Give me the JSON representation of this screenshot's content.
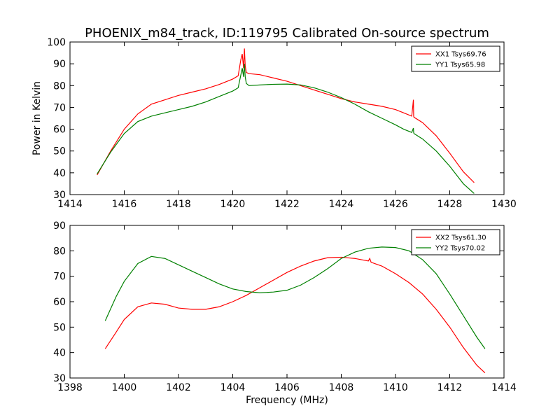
{
  "title": "PHOENIX_m84_track, ID:119795 Calibrated On-source spectrum",
  "chart_data": [
    {
      "type": "line",
      "ylabel": "Power in Kelvin",
      "xlabel": "",
      "xlim": [
        1414,
        1430
      ],
      "ylim": [
        30,
        100
      ],
      "xticks": [
        "1414",
        "1416",
        "1418",
        "1420",
        "1422",
        "1424",
        "1426",
        "1428",
        "1430"
      ],
      "yticks": [
        "30",
        "40",
        "50",
        "60",
        "70",
        "80",
        "90",
        "100"
      ],
      "legend_position": "top-right",
      "series": [
        {
          "name": "XX1 Tsys69.76",
          "color": "#ff0000",
          "x": [
            1415.0,
            1415.5,
            1416.0,
            1416.5,
            1417.0,
            1417.5,
            1418.0,
            1418.5,
            1419.0,
            1419.5,
            1420.0,
            1420.2,
            1420.3,
            1420.35,
            1420.4,
            1420.43,
            1420.46,
            1420.5,
            1420.6,
            1421.0,
            1421.5,
            1422.0,
            1422.5,
            1423.0,
            1423.5,
            1424.0,
            1424.5,
            1425.0,
            1425.5,
            1426.0,
            1426.3,
            1426.6,
            1426.66,
            1426.67,
            1426.68,
            1427.0,
            1427.5,
            1428.0,
            1428.5,
            1428.9
          ],
          "values": [
            39,
            50,
            60,
            67,
            71.5,
            73.5,
            75.5,
            77,
            78.5,
            80.5,
            83,
            84.5,
            92,
            94.5,
            88,
            97,
            89,
            86,
            85.5,
            85,
            83.5,
            82,
            80,
            78,
            76,
            74,
            72.5,
            71.5,
            70.5,
            69,
            67.5,
            66,
            73.5,
            66,
            65.5,
            63,
            57,
            49,
            40.5,
            35.5
          ]
        },
        {
          "name": "YY1 Tsys65.98",
          "color": "#008000",
          "x": [
            1415.0,
            1415.5,
            1416.0,
            1416.5,
            1417.0,
            1417.5,
            1418.0,
            1418.5,
            1419.0,
            1419.5,
            1420.0,
            1420.2,
            1420.3,
            1420.35,
            1420.4,
            1420.43,
            1420.46,
            1420.5,
            1420.6,
            1421.0,
            1421.5,
            1422.0,
            1422.5,
            1423.0,
            1423.5,
            1424.0,
            1424.5,
            1425.0,
            1425.5,
            1426.0,
            1426.3,
            1426.6,
            1426.66,
            1426.67,
            1426.68,
            1427.0,
            1427.5,
            1428.0,
            1428.5,
            1428.9
          ],
          "values": [
            39.5,
            49.5,
            58,
            63.5,
            66,
            67.5,
            69,
            70.5,
            72.5,
            75,
            77.5,
            79,
            85,
            88,
            84,
            90,
            84,
            81,
            80,
            80.3,
            80.6,
            80.7,
            80.3,
            79,
            77,
            74.5,
            71.5,
            68,
            65,
            62,
            60,
            58.5,
            60.5,
            58.5,
            58,
            55.5,
            50,
            43,
            35,
            30.5
          ]
        }
      ]
    },
    {
      "type": "line",
      "xlabel": "Frequency (MHz)",
      "ylabel": "",
      "xlim": [
        1398,
        1414
      ],
      "ylim": [
        30,
        90
      ],
      "xticks": [
        "1398",
        "1400",
        "1402",
        "1404",
        "1406",
        "1408",
        "1410",
        "1412",
        "1414"
      ],
      "yticks": [
        "30",
        "40",
        "50",
        "60",
        "70",
        "80",
        "90"
      ],
      "legend_position": "top-right",
      "series": [
        {
          "name": "XX2 Tsys61.30",
          "color": "#ff0000",
          "x": [
            1399.3,
            1399.7,
            1400.0,
            1400.5,
            1401.0,
            1401.5,
            1402.0,
            1402.5,
            1403.0,
            1403.5,
            1404.0,
            1404.5,
            1405.0,
            1405.5,
            1406.0,
            1406.5,
            1407.0,
            1407.5,
            1408.0,
            1408.5,
            1409.0,
            1409.05,
            1409.1,
            1409.5,
            1410.0,
            1410.5,
            1411.0,
            1411.5,
            1412.0,
            1412.5,
            1413.0,
            1413.3
          ],
          "values": [
            41.5,
            48,
            53,
            58,
            59.5,
            59,
            57.5,
            57,
            57,
            58,
            60,
            62.5,
            65.5,
            68.5,
            71.5,
            74,
            76,
            77.3,
            77.5,
            77,
            76,
            77,
            75.5,
            74,
            71,
            67.5,
            63,
            57,
            50,
            42,
            35,
            32
          ]
        },
        {
          "name": "YY2 Tsys70.02",
          "color": "#008000",
          "x": [
            1399.3,
            1399.7,
            1400.0,
            1400.5,
            1401.0,
            1401.5,
            1402.0,
            1402.5,
            1403.0,
            1403.5,
            1404.0,
            1404.5,
            1405.0,
            1405.5,
            1406.0,
            1406.5,
            1407.0,
            1407.5,
            1408.0,
            1408.5,
            1409.0,
            1409.5,
            1410.0,
            1410.5,
            1411.0,
            1411.5,
            1412.0,
            1412.5,
            1413.0,
            1413.3
          ],
          "values": [
            52.5,
            62,
            68,
            75,
            77.8,
            77,
            74.5,
            72,
            69.5,
            67,
            65,
            64,
            63.5,
            63.8,
            64.5,
            66.5,
            69.5,
            73,
            77,
            79.5,
            81,
            81.5,
            81.3,
            80,
            76.5,
            71,
            63,
            54.5,
            46,
            41.5
          ]
        }
      ]
    }
  ]
}
